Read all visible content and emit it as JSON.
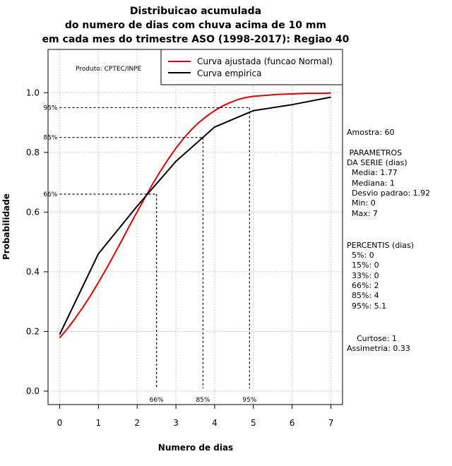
{
  "chart_data": {
    "type": "line",
    "title": [
      "Distribuicao acumulada",
      "do numero de dias com chuva acima de 10 mm",
      "em cada mes do trimestre ASO (1998-2017): Regiao 40"
    ],
    "xlabel": "Numero de dias",
    "ylabel": "Probabilidade",
    "xlim": [
      -0.3,
      7.3
    ],
    "ylim": [
      -0.045,
      1.145
    ],
    "x_ticks": [
      0,
      1,
      2,
      3,
      4,
      5,
      6,
      7
    ],
    "y_ticks": [
      "0.0",
      "0.2",
      "0.4",
      "0.6",
      "0.8",
      "1.0"
    ],
    "grid": true,
    "legend_position": "top-right",
    "credit": "Produto: CPTEC/INPE",
    "series": [
      {
        "name": "Curva ajustada (funcao Normal)",
        "color": "#dd0000",
        "x": [
          0,
          0.2,
          0.4,
          0.6,
          0.8,
          1.0,
          1.2,
          1.4,
          1.6,
          1.8,
          2.0,
          2.2,
          2.4,
          2.6,
          2.8,
          3.0,
          3.2,
          3.4,
          3.6,
          3.8,
          4.0,
          4.2,
          4.4,
          4.6,
          4.8,
          5.0,
          5.2,
          5.4,
          5.6,
          5.8,
          6.0,
          6.2,
          6.4,
          6.6,
          6.8,
          7.0
        ],
        "y": [
          0.179,
          0.209,
          0.244,
          0.281,
          0.321,
          0.364,
          0.409,
          0.456,
          0.504,
          0.553,
          0.601,
          0.648,
          0.694,
          0.737,
          0.777,
          0.814,
          0.847,
          0.876,
          0.901,
          0.922,
          0.94,
          0.955,
          0.967,
          0.977,
          0.984,
          0.988,
          0.99,
          0.992,
          0.994,
          0.995,
          0.996,
          0.997,
          0.998,
          0.998,
          0.998,
          0.999
        ]
      },
      {
        "name": "Curva empirica",
        "color": "#000000",
        "x": [
          0,
          1,
          2,
          3,
          4,
          5,
          6,
          7
        ],
        "y": [
          0.19,
          0.46,
          0.62,
          0.77,
          0.885,
          0.94,
          0.96,
          0.985
        ]
      }
    ],
    "percentile_markers": [
      {
        "label": "66%",
        "x": 2.5,
        "y": 0.66
      },
      {
        "label": "85%",
        "x": 3.7,
        "y": 0.85
      },
      {
        "label": "95%",
        "x": 4.9,
        "y": 0.95
      }
    ]
  },
  "stats": {
    "amostra": "Amostra: 60",
    "parametros_title": " PARAMETROS",
    "da_serie": "DA SERIE (dias)",
    "media": "  Media: 1.77",
    "mediana": "  Mediana: 1",
    "desvio": "  Desvio padrao: 1.92",
    "min": "  Min: 0",
    "max": "  Max: 7",
    "percentis_title": "PERCENTIS (dias)",
    "p5": "  5%: 0",
    "p15": "  15%: 0",
    "p33": "  33%: 0",
    "p66": "  66%: 2",
    "p85": "  85%: 4",
    "p95": "  95%: 5.1",
    "curtose": "    Curtose: 1",
    "assimetria": "Assimetria: 0.33"
  }
}
